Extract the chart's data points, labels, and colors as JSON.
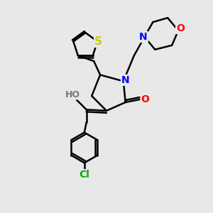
{
  "background_color": "#e8e8e8",
  "atom_colors": {
    "C": "#000000",
    "N": "#0000ff",
    "O": "#ff0000",
    "S": "#cccc00",
    "Cl": "#00aa00",
    "H": "#777777"
  },
  "bond_color": "#000000",
  "bond_width": 1.8,
  "font_size": 10
}
